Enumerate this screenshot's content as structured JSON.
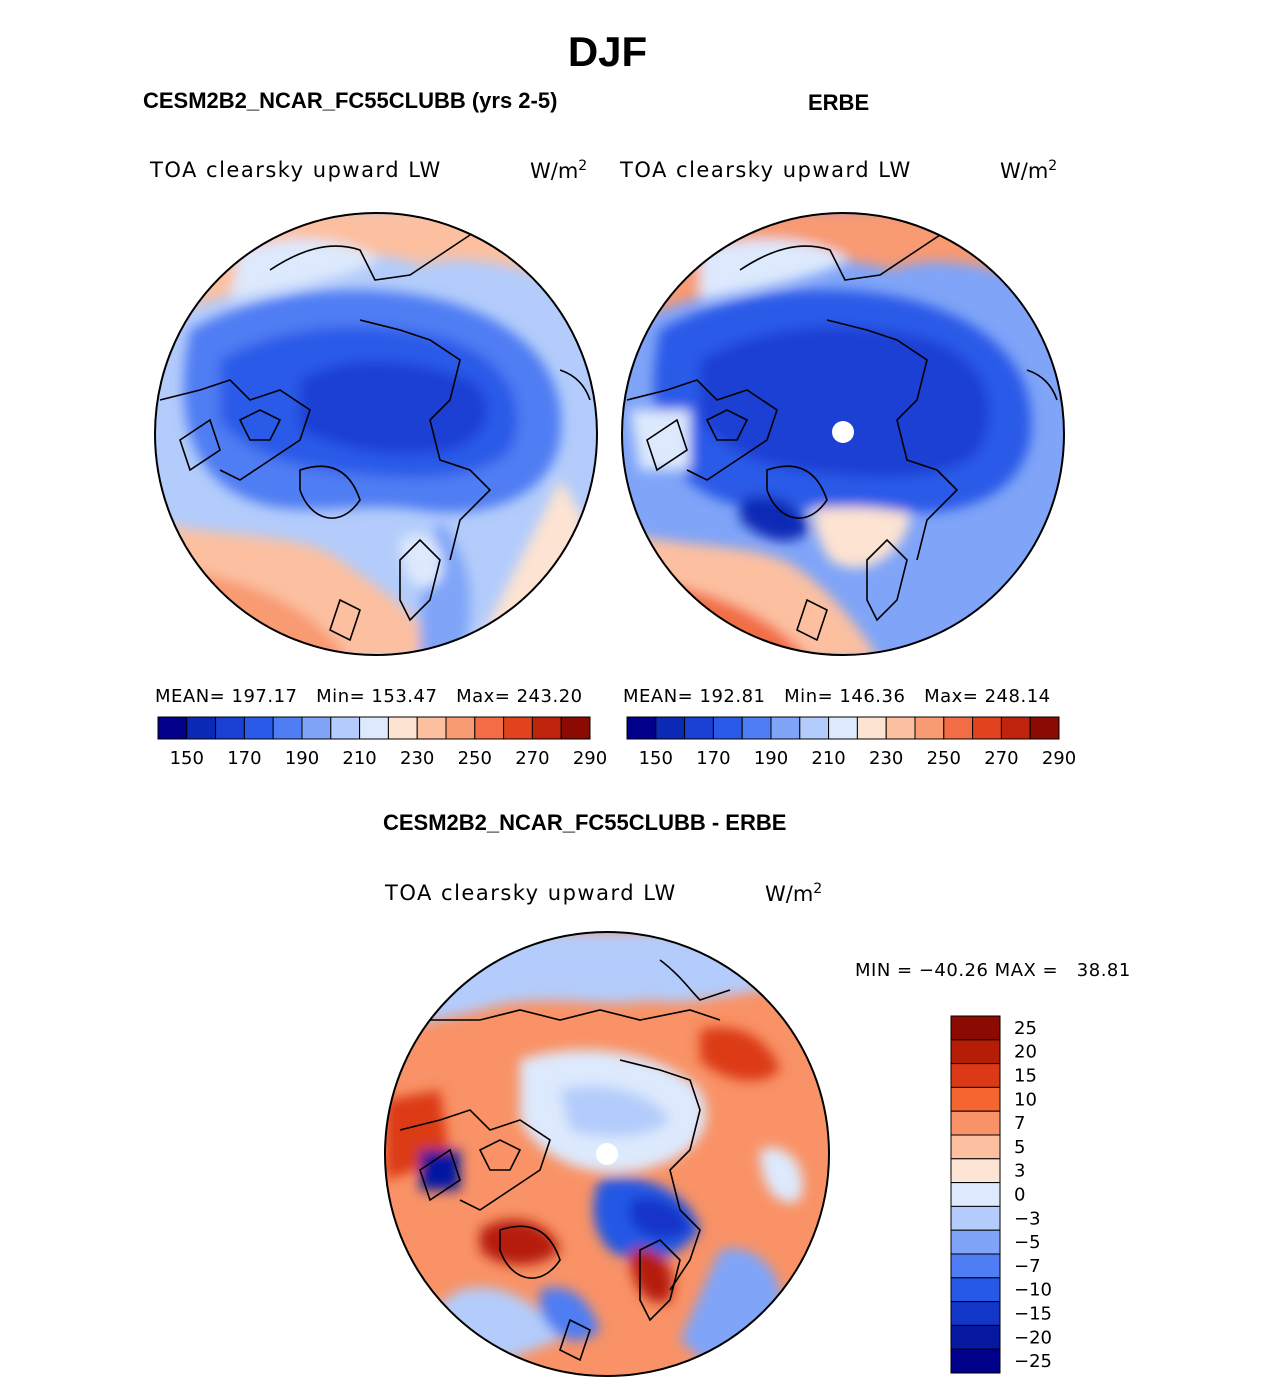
{
  "title": "DJF",
  "panels": {
    "model": {
      "title": "CESM2B2_NCAR_FC55CLUBB (yrs 2-5)",
      "variable": "TOA clearsky upward LW",
      "units_base": "W/m",
      "units_exp": "2",
      "mean_label": "MEAN=",
      "mean": "197.17",
      "min_label": "Min=",
      "min": "153.47",
      "max_label": "Max=",
      "max": "243.20"
    },
    "obs": {
      "title": "ERBE",
      "variable": "TOA clearsky upward LW",
      "units_base": "W/m",
      "units_exp": "2",
      "mean_label": "MEAN=",
      "mean": "192.81",
      "min_label": "Min=",
      "min": "146.36",
      "max_label": "Max=",
      "max": "248.14"
    },
    "diff": {
      "title": "CESM2B2_NCAR_FC55CLUBB - ERBE",
      "variable": "TOA clearsky upward LW",
      "units_base": "W/m",
      "units_exp": "2",
      "minmax_text": "MIN = −40.26 MAX =   38.81"
    }
  },
  "chart_data": [
    {
      "type": "heatmap",
      "projection": "north polar stereographic",
      "title": "CESM2B2_NCAR_FC55CLUBB (yrs 2-5)",
      "variable": "TOA clearsky upward LW",
      "units": "W/m2",
      "stats": {
        "mean": 197.17,
        "min": 153.47,
        "max": 243.2
      },
      "colorbar_levels": [
        150,
        160,
        170,
        180,
        190,
        200,
        210,
        220,
        230,
        240,
        250,
        260,
        270,
        280,
        290
      ],
      "colorbar_tick_labels": [
        "150",
        "170",
        "190",
        "210",
        "230",
        "250",
        "270",
        "290"
      ]
    },
    {
      "type": "heatmap",
      "projection": "north polar stereographic",
      "title": "ERBE",
      "variable": "TOA clearsky upward LW",
      "units": "W/m2",
      "stats": {
        "mean": 192.81,
        "min": 146.36,
        "max": 248.14
      },
      "colorbar_levels": [
        150,
        160,
        170,
        180,
        190,
        200,
        210,
        220,
        230,
        240,
        250,
        260,
        270,
        280,
        290
      ],
      "colorbar_tick_labels": [
        "150",
        "170",
        "190",
        "210",
        "230",
        "250",
        "270",
        "290"
      ]
    },
    {
      "type": "heatmap",
      "projection": "north polar stereographic",
      "title": "CESM2B2_NCAR_FC55CLUBB - ERBE",
      "variable": "TOA clearsky upward LW",
      "units": "W/m2",
      "stats": {
        "min": -40.26,
        "max": 38.81
      },
      "colorbar_levels": [
        "25",
        "20",
        "15",
        "10",
        "7",
        "5",
        "3",
        "0",
        "−3",
        "−5",
        "−7",
        "−10",
        "−15",
        "−20",
        "−25"
      ]
    }
  ],
  "palettes": {
    "seq": [
      "#00008b",
      "#0a2ab5",
      "#1a40d4",
      "#2a5ae8",
      "#4f7df3",
      "#7fa4f8",
      "#b3ccfb",
      "#dde9fd",
      "#fde3d2",
      "#fcc0a0",
      "#f89a72",
      "#f26d45",
      "#e2431f",
      "#bf250d",
      "#8b0a02"
    ],
    "div": [
      "#8b0a02",
      "#b61d07",
      "#dc3a16",
      "#f46530",
      "#f99266",
      "#fcbf9f",
      "#fde5d6",
      "#dde9fd",
      "#b3ccfb",
      "#7fa4f8",
      "#4f7df3",
      "#2458e5",
      "#1236c8",
      "#0618a0",
      "#00008b"
    ]
  }
}
